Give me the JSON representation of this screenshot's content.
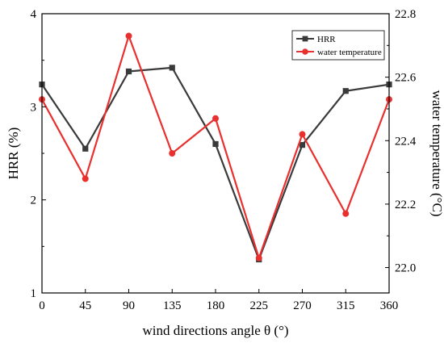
{
  "chart_data": {
    "type": "line",
    "xlabel": "wind directions angle θ (°)",
    "ylabel_left": "HRR (%)",
    "ylabel_right": "water temperature (°C)",
    "x": [
      0,
      45,
      90,
      135,
      180,
      225,
      270,
      315,
      360
    ],
    "x_ticks": [
      "0",
      "45",
      "90",
      "135",
      "180",
      "225",
      "270",
      "315",
      "360"
    ],
    "xlim": [
      0,
      360
    ],
    "ylim_left": [
      1,
      4
    ],
    "y_ticks_left": [
      "1",
      "2",
      "3",
      "4"
    ],
    "ylim_right": [
      21.92,
      22.8
    ],
    "y_ticks_right": [
      "22.0",
      "22.2",
      "22.4",
      "22.6",
      "22.8"
    ],
    "grid": false,
    "legend_position": "top-right",
    "series": [
      {
        "name": "HRR",
        "axis": "left",
        "marker": "square",
        "color": "#3a3a3a",
        "values": [
          3.24,
          2.55,
          3.38,
          3.42,
          2.6,
          1.36,
          2.59,
          3.17,
          3.24
        ]
      },
      {
        "name": "water temperature",
        "axis": "right",
        "marker": "circle",
        "color": "#e8312e",
        "values": [
          22.53,
          22.28,
          22.73,
          22.36,
          22.47,
          22.03,
          22.42,
          22.17,
          22.53
        ]
      }
    ]
  }
}
